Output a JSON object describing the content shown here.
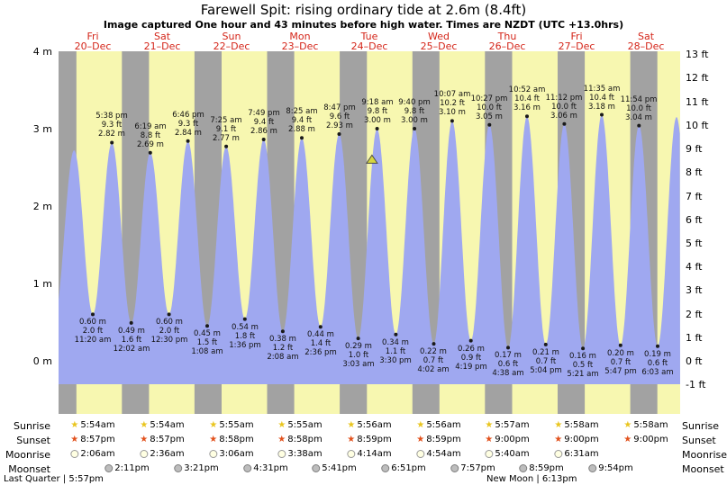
{
  "page": {
    "title": "Farewell Spit: rising  ordinary tide at 2.6m (8.4ft)",
    "subtitle": "Image captured One hour and 43 minutes before high water. Times are NZDT (UTC +13.0hrs)"
  },
  "days": [
    {
      "name": "Fri",
      "date": "20–Dec"
    },
    {
      "name": "Sat",
      "date": "21–Dec"
    },
    {
      "name": "Sun",
      "date": "22–Dec"
    },
    {
      "name": "Mon",
      "date": "23–Dec"
    },
    {
      "name": "Tue",
      "date": "24–Dec"
    },
    {
      "name": "Wed",
      "date": "25–Dec"
    },
    {
      "name": "Thu",
      "date": "26–Dec"
    },
    {
      "name": "Fri",
      "date": "27–Dec"
    },
    {
      "name": "Sat",
      "date": "28–Dec"
    }
  ],
  "axis": {
    "left_labels": [
      "4 m",
      "3 m",
      "2 m",
      "1 m",
      "0 m"
    ],
    "right_labels": [
      "13 ft",
      "12 ft",
      "11 ft",
      "10 ft",
      "9 ft",
      "8 ft",
      "7 ft",
      "6 ft",
      "5 ft",
      "4 ft",
      "3 ft",
      "2 ft",
      "1 ft",
      "0 ft",
      "-1 ft"
    ]
  },
  "astro": {
    "labels": {
      "sunrise": "Sunrise",
      "sunset": "Sunset",
      "moonrise": "Moonrise",
      "moonset": "Moonset"
    },
    "sunrise": [
      "5:54am",
      "5:54am",
      "5:55am",
      "5:55am",
      "5:56am",
      "5:56am",
      "5:57am",
      "5:58am",
      "5:58am"
    ],
    "sunset": [
      "8:57pm",
      "8:57pm",
      "8:58pm",
      "8:58pm",
      "8:59pm",
      "8:59pm",
      "9:00pm",
      "9:00pm",
      "9:00pm"
    ],
    "moonrise": [
      "2:06am",
      "2:36am",
      "3:06am",
      "3:38am",
      "4:14am",
      "4:54am",
      "5:40am",
      "6:31am"
    ],
    "moonset": [
      "2:11pm",
      "3:21pm",
      "4:31pm",
      "5:41pm",
      "6:51pm",
      "7:57pm",
      "8:59pm",
      "9:54pm"
    ],
    "footer_left": "Last Quarter | 5:57pm",
    "footer_center": "New Moon | 6:13pm"
  },
  "chart_data": {
    "type": "area",
    "title": "Tide height at Farewell Spit, 20–28 Dec, rising ordinary tide currently at 2.6m (8.4ft)",
    "x_unit": "hours from Fri 20-Dec 00:00 NZDT",
    "x_domain": [
      0,
      205.5
    ],
    "y_unit": "metres",
    "y_domain": [
      -0.69,
      4.0
    ],
    "legend": {
      "daylight_band": "daytime (sunrise to sunset)",
      "night_band": "night",
      "area": "tide height"
    },
    "current_marker": {
      "t": 103.6,
      "height_m": 2.6,
      "height_ft": 8.4,
      "state": "rising"
    },
    "colors": {
      "daylight": "#f7f7b0",
      "night": "#a2a2a2",
      "tide": "#9fa8f0",
      "day_label": "#d42519",
      "marker": "#d6d63e"
    },
    "tide_events": [
      {
        "t": -1.4,
        "height_m": 0.55,
        "type": "low",
        "labeled": false
      },
      {
        "t": 5.15,
        "height_m": 2.72,
        "type": "high",
        "labeled": false
      },
      {
        "t": 11.33,
        "height_m": 0.6,
        "type": "low",
        "labeled": true,
        "time": "11:20 am",
        "ft": "2.0 ft",
        "m": "0.60 m"
      },
      {
        "t": 17.63,
        "height_m": 2.82,
        "type": "high",
        "labeled": true,
        "time": "5:38 pm",
        "ft": "9.3 ft",
        "m": "2.82 m"
      },
      {
        "t": 24.03,
        "height_m": 0.49,
        "type": "low",
        "labeled": true,
        "time": "12:02 am",
        "ft": "1.6 ft",
        "m": "0.49 m"
      },
      {
        "t": 30.32,
        "height_m": 2.69,
        "type": "high",
        "labeled": true,
        "time": "6:19 am",
        "ft": "8.8 ft",
        "m": "2.69 m"
      },
      {
        "t": 36.5,
        "height_m": 0.6,
        "type": "low",
        "labeled": true,
        "time": "12:30 pm",
        "ft": "2.0 ft",
        "m": "0.60 m"
      },
      {
        "t": 42.77,
        "height_m": 2.84,
        "type": "high",
        "labeled": true,
        "time": "6:46 pm",
        "ft": "9.3 ft",
        "m": "2.84 m"
      },
      {
        "t": 49.13,
        "height_m": 0.45,
        "type": "low",
        "labeled": true,
        "time": "1:08 am",
        "ft": "1.5 ft",
        "m": "0.45 m"
      },
      {
        "t": 55.42,
        "height_m": 2.77,
        "type": "high",
        "labeled": true,
        "time": "7:25 am",
        "ft": "9.1 ft",
        "m": "2.77 m"
      },
      {
        "t": 61.6,
        "height_m": 0.54,
        "type": "low",
        "labeled": true,
        "time": "1:36 pm",
        "ft": "1.8 ft",
        "m": "0.54 m"
      },
      {
        "t": 67.82,
        "height_m": 2.86,
        "type": "high",
        "labeled": true,
        "time": "7:49 pm",
        "ft": "9.4 ft",
        "m": "2.86 m"
      },
      {
        "t": 74.13,
        "height_m": 0.38,
        "type": "low",
        "labeled": true,
        "time": "2:08 am",
        "ft": "1.2 ft",
        "m": "0.38 m"
      },
      {
        "t": 80.42,
        "height_m": 2.88,
        "type": "high",
        "labeled": true,
        "time": "8:25 am",
        "ft": "9.4 ft",
        "m": "2.88 m"
      },
      {
        "t": 86.6,
        "height_m": 0.44,
        "type": "low",
        "labeled": true,
        "time": "2:36 pm",
        "ft": "1.4 ft",
        "m": "0.44 m"
      },
      {
        "t": 92.78,
        "height_m": 2.93,
        "type": "high",
        "labeled": true,
        "time": "8:47 pm",
        "ft": "9.6 ft",
        "m": "2.93 m"
      },
      {
        "t": 99.05,
        "height_m": 0.29,
        "type": "low",
        "labeled": true,
        "time": "3:03 am",
        "ft": "1.0 ft",
        "m": "0.29 m"
      },
      {
        "t": 105.3,
        "height_m": 3.0,
        "type": "high",
        "labeled": true,
        "time": "9:18 am",
        "ft": "9.8 ft",
        "m": "3.00 m"
      },
      {
        "t": 111.5,
        "height_m": 0.34,
        "type": "low",
        "labeled": true,
        "time": "3:30 pm",
        "ft": "1.1 ft",
        "m": "0.34 m"
      },
      {
        "t": 117.67,
        "height_m": 3.0,
        "type": "high",
        "labeled": true,
        "time": "9:40 pm",
        "ft": "9.8 ft",
        "m": "3.00 m"
      },
      {
        "t": 124.03,
        "height_m": 0.22,
        "type": "low",
        "labeled": true,
        "time": "4:02 am",
        "ft": "0.7 ft",
        "m": "0.22 m"
      },
      {
        "t": 130.12,
        "height_m": 3.1,
        "type": "high",
        "labeled": true,
        "time": "10:07 am",
        "ft": "10.2 ft",
        "m": "3.10 m"
      },
      {
        "t": 136.32,
        "height_m": 0.26,
        "type": "low",
        "labeled": true,
        "time": "4:19 pm",
        "ft": "0.9 ft",
        "m": "0.26 m"
      },
      {
        "t": 142.45,
        "height_m": 3.05,
        "type": "high",
        "labeled": true,
        "time": "10:27 pm",
        "ft": "10.0 ft",
        "m": "3.05 m"
      },
      {
        "t": 148.63,
        "height_m": 0.17,
        "type": "low",
        "labeled": true,
        "time": "4:38 am",
        "ft": "0.6 ft",
        "m": "0.17 m"
      },
      {
        "t": 154.87,
        "height_m": 3.16,
        "type": "high",
        "labeled": true,
        "time": "10:52 am",
        "ft": "10.4 ft",
        "m": "3.16 m"
      },
      {
        "t": 161.07,
        "height_m": 0.21,
        "type": "low",
        "labeled": true,
        "time": "5:04 pm",
        "ft": "0.7 ft",
        "m": "0.21 m"
      },
      {
        "t": 167.2,
        "height_m": 3.06,
        "type": "high",
        "labeled": true,
        "time": "11:12 pm",
        "ft": "10.0 ft",
        "m": "3.06 m"
      },
      {
        "t": 173.35,
        "height_m": 0.16,
        "type": "low",
        "labeled": true,
        "time": "5:21 am",
        "ft": "0.5 ft",
        "m": "0.16 m"
      },
      {
        "t": 179.58,
        "height_m": 3.18,
        "type": "high",
        "labeled": true,
        "time": "11:35 am",
        "ft": "10.4 ft",
        "m": "3.18 m"
      },
      {
        "t": 185.78,
        "height_m": 0.2,
        "type": "low",
        "labeled": true,
        "time": "5:47 pm",
        "ft": "0.7 ft",
        "m": "0.20 m"
      },
      {
        "t": 191.9,
        "height_m": 3.04,
        "type": "high",
        "labeled": true,
        "time": "11:54 pm",
        "ft": "10.0 ft",
        "m": "3.04 m"
      },
      {
        "t": 198.05,
        "height_m": 0.19,
        "type": "low",
        "labeled": true,
        "time": "6:03 am",
        "ft": "0.6 ft",
        "m": "0.19 m"
      },
      {
        "t": 204.3,
        "height_m": 3.15,
        "type": "high",
        "labeled": false
      },
      {
        "t": 210.6,
        "height_m": 0.2,
        "type": "low",
        "labeled": false
      }
    ]
  }
}
